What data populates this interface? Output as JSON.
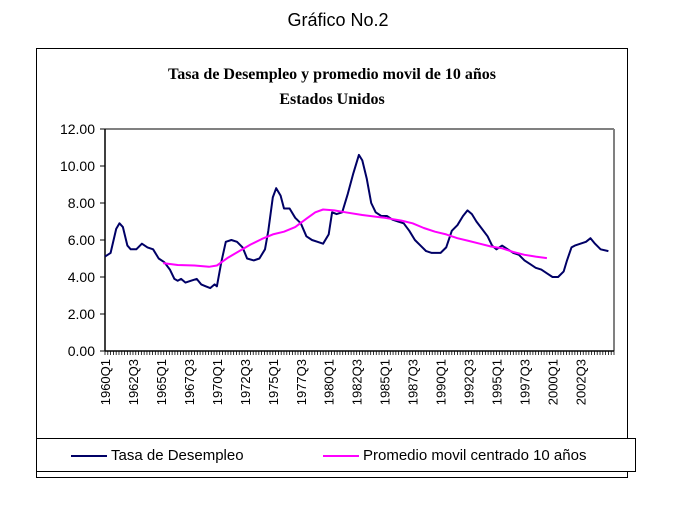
{
  "page_title": "Gráfico No.2",
  "chart_data": {
    "type": "line",
    "title": "Tasa de Desempleo y promedio movil de 10 años",
    "subtitle": "Estados Unidos",
    "xlabel": "",
    "ylabel": "",
    "ylim": [
      0,
      12
    ],
    "yticks": [
      "0.00",
      "2.00",
      "4.00",
      "6.00",
      "8.00",
      "10.00",
      "12.00"
    ],
    "yticks_values": [
      0,
      2,
      4,
      6,
      8,
      10,
      12
    ],
    "xticks": [
      "1960Q1",
      "1962Q3",
      "1965Q1",
      "1967Q3",
      "1970Q1",
      "1972Q3",
      "1975Q1",
      "1977Q3",
      "1980Q1",
      "1982Q3",
      "1985Q1",
      "1987Q3",
      "1990Q1",
      "1992Q3",
      "1995Q1",
      "1997Q3",
      "2000Q1",
      "2002Q3"
    ],
    "xlim_years": [
      1960.0,
      2005.5
    ],
    "grid": false,
    "legend_position": "bottom",
    "series": [
      {
        "name": "Tasa de Desempleo",
        "color": "#000066",
        "points": [
          [
            1960.0,
            5.1
          ],
          [
            1960.5,
            5.3
          ],
          [
            1961.0,
            6.6
          ],
          [
            1961.3,
            6.9
          ],
          [
            1961.6,
            6.7
          ],
          [
            1962.0,
            5.7
          ],
          [
            1962.3,
            5.5
          ],
          [
            1962.8,
            5.5
          ],
          [
            1963.3,
            5.8
          ],
          [
            1963.8,
            5.6
          ],
          [
            1964.3,
            5.5
          ],
          [
            1964.8,
            5.0
          ],
          [
            1965.3,
            4.8
          ],
          [
            1965.8,
            4.4
          ],
          [
            1966.2,
            3.9
          ],
          [
            1966.5,
            3.8
          ],
          [
            1966.8,
            3.9
          ],
          [
            1967.2,
            3.7
          ],
          [
            1967.7,
            3.8
          ],
          [
            1968.2,
            3.9
          ],
          [
            1968.6,
            3.6
          ],
          [
            1969.0,
            3.5
          ],
          [
            1969.4,
            3.4
          ],
          [
            1969.8,
            3.6
          ],
          [
            1970.0,
            3.5
          ],
          [
            1970.4,
            4.8
          ],
          [
            1970.8,
            5.9
          ],
          [
            1971.3,
            6.0
          ],
          [
            1971.8,
            5.9
          ],
          [
            1972.3,
            5.6
          ],
          [
            1972.7,
            5.0
          ],
          [
            1973.3,
            4.9
          ],
          [
            1973.8,
            5.0
          ],
          [
            1974.3,
            5.5
          ],
          [
            1974.6,
            6.5
          ],
          [
            1975.0,
            8.3
          ],
          [
            1975.3,
            8.8
          ],
          [
            1975.7,
            8.4
          ],
          [
            1976.0,
            7.7
          ],
          [
            1976.5,
            7.7
          ],
          [
            1977.0,
            7.2
          ],
          [
            1977.5,
            6.9
          ],
          [
            1978.0,
            6.2
          ],
          [
            1978.5,
            6.0
          ],
          [
            1979.0,
            5.9
          ],
          [
            1979.5,
            5.8
          ],
          [
            1980.0,
            6.3
          ],
          [
            1980.3,
            7.5
          ],
          [
            1980.7,
            7.4
          ],
          [
            1981.2,
            7.5
          ],
          [
            1981.7,
            8.5
          ],
          [
            1982.2,
            9.6
          ],
          [
            1982.7,
            10.6
          ],
          [
            1983.0,
            10.3
          ],
          [
            1983.4,
            9.3
          ],
          [
            1983.8,
            8.0
          ],
          [
            1984.2,
            7.5
          ],
          [
            1984.7,
            7.3
          ],
          [
            1985.2,
            7.3
          ],
          [
            1985.7,
            7.1
          ],
          [
            1986.2,
            7.0
          ],
          [
            1986.7,
            6.9
          ],
          [
            1987.2,
            6.5
          ],
          [
            1987.7,
            6.0
          ],
          [
            1988.2,
            5.7
          ],
          [
            1988.7,
            5.4
          ],
          [
            1989.2,
            5.3
          ],
          [
            1989.7,
            5.3
          ],
          [
            1990.0,
            5.3
          ],
          [
            1990.5,
            5.6
          ],
          [
            1991.0,
            6.5
          ],
          [
            1991.5,
            6.8
          ],
          [
            1992.0,
            7.3
          ],
          [
            1992.4,
            7.6
          ],
          [
            1992.8,
            7.4
          ],
          [
            1993.2,
            7.0
          ],
          [
            1993.7,
            6.6
          ],
          [
            1994.2,
            6.2
          ],
          [
            1994.6,
            5.7
          ],
          [
            1995.0,
            5.5
          ],
          [
            1995.5,
            5.7
          ],
          [
            1996.0,
            5.5
          ],
          [
            1996.5,
            5.3
          ],
          [
            1997.0,
            5.2
          ],
          [
            1997.5,
            4.9
          ],
          [
            1998.0,
            4.7
          ],
          [
            1998.5,
            4.5
          ],
          [
            1999.0,
            4.4
          ],
          [
            1999.5,
            4.2
          ],
          [
            2000.0,
            4.0
          ],
          [
            2000.5,
            4.0
          ],
          [
            2001.0,
            4.3
          ],
          [
            2001.3,
            4.9
          ],
          [
            2001.7,
            5.6
          ],
          [
            2002.0,
            5.7
          ],
          [
            2002.5,
            5.8
          ],
          [
            2003.0,
            5.9
          ],
          [
            2003.4,
            6.1
          ],
          [
            2003.8,
            5.8
          ],
          [
            2004.3,
            5.5
          ],
          [
            2005.0,
            5.4
          ]
        ]
      },
      {
        "name": "Promedio movil centrado 10 años",
        "color": "#ff00ff",
        "points": [
          [
            1965.2,
            4.75
          ],
          [
            1966.5,
            4.65
          ],
          [
            1968.0,
            4.62
          ],
          [
            1969.3,
            4.55
          ],
          [
            1970.0,
            4.62
          ],
          [
            1971.0,
            5.05
          ],
          [
            1972.0,
            5.4
          ],
          [
            1973.0,
            5.75
          ],
          [
            1974.0,
            6.05
          ],
          [
            1975.0,
            6.3
          ],
          [
            1976.0,
            6.45
          ],
          [
            1977.0,
            6.7
          ],
          [
            1978.0,
            7.15
          ],
          [
            1978.8,
            7.5
          ],
          [
            1979.5,
            7.65
          ],
          [
            1980.5,
            7.6
          ],
          [
            1981.5,
            7.5
          ],
          [
            1983.0,
            7.35
          ],
          [
            1985.0,
            7.2
          ],
          [
            1986.5,
            7.05
          ],
          [
            1987.5,
            6.9
          ],
          [
            1988.5,
            6.65
          ],
          [
            1989.5,
            6.45
          ],
          [
            1990.5,
            6.3
          ],
          [
            1991.5,
            6.1
          ],
          [
            1992.5,
            5.95
          ],
          [
            1993.5,
            5.8
          ],
          [
            1994.5,
            5.65
          ],
          [
            1995.5,
            5.55
          ],
          [
            1996.5,
            5.35
          ],
          [
            1997.5,
            5.2
          ],
          [
            1998.5,
            5.1
          ],
          [
            1999.5,
            5.02
          ]
        ]
      }
    ]
  }
}
